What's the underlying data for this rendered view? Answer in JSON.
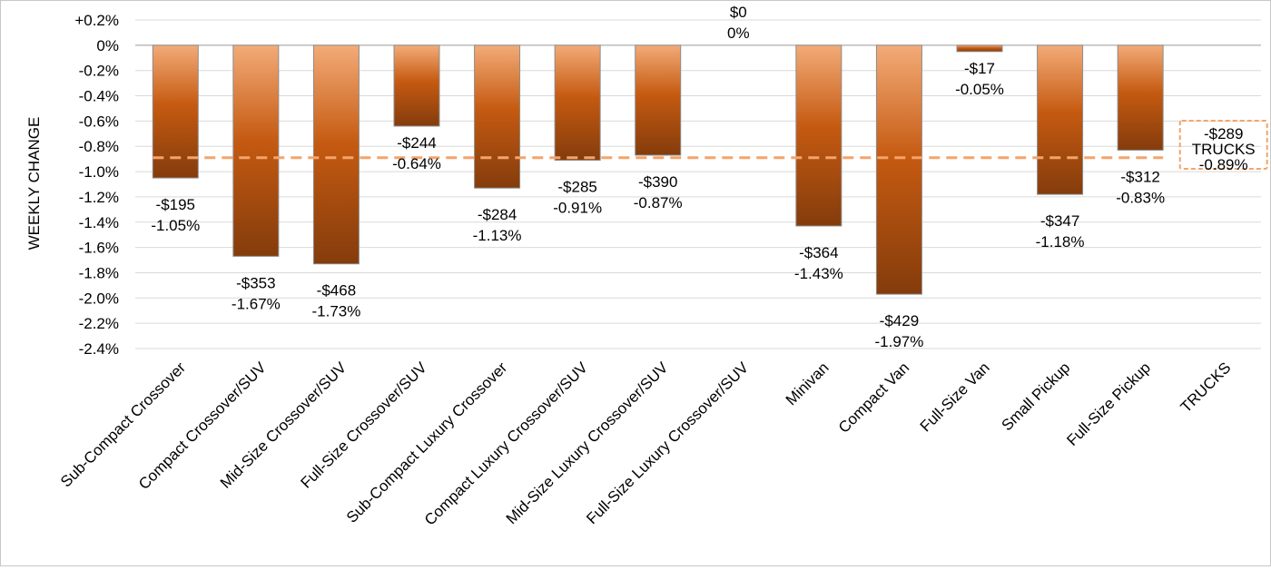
{
  "chart_data": {
    "type": "bar",
    "ylabel": "WEEKLY CHANGE",
    "ylim": [
      -2.4,
      0.2
    ],
    "yticks": [
      "+0.2%",
      "0%",
      "-0.2%",
      "-0.4%",
      "-0.6%",
      "-0.8%",
      "-1.0%",
      "-1.2%",
      "-1.4%",
      "-1.6%",
      "-1.8%",
      "-2.0%",
      "-2.2%",
      "-2.4%"
    ],
    "grid": true,
    "categories": [
      "Sub-Compact Crossover",
      "Compact Crossover/SUV",
      "Mid-Size Crossover/SUV",
      "Full-Size Crossover/SUV",
      "Sub-Compact Luxury Crossover",
      "Compact Luxury Crossover/SUV",
      "Mid-Size Luxury Crossover/SUV",
      "Full-Size Luxury Crossover/SUV",
      "Minivan",
      "Compact Van",
      "Full-Size Van",
      "Small Pickup",
      "Full-Size Pickup",
      "TRUCKS"
    ],
    "values": [
      -1.05,
      -1.67,
      -1.73,
      -0.64,
      -1.13,
      -0.91,
      -0.87,
      0,
      -1.43,
      -1.97,
      -0.05,
      -1.18,
      -0.83,
      null
    ],
    "dollar_labels": [
      "-$195",
      "-$353",
      "-$468",
      "-$244",
      "-$284",
      "-$285",
      "-$390",
      "$0",
      "-$364",
      "-$429",
      "-$17",
      "-$347",
      "-$312",
      ""
    ],
    "percent_labels": [
      "-1.05%",
      "-1.67%",
      "-1.73%",
      "-0.64%",
      "-1.13%",
      "-0.91%",
      "-0.87%",
      "0%",
      "-1.43%",
      "-1.97%",
      "-0.05%",
      "-1.18%",
      "-0.83%",
      ""
    ],
    "average_line": {
      "value": -0.89,
      "dollar": "-$289",
      "name": "TRUCKS",
      "percent": "-0.89%"
    },
    "colors": {
      "bar_top": "#f3ab78",
      "bar_mid": "#c55a11",
      "bar_bottom": "#843c0c",
      "bar_edge": "#8c8c8c",
      "average": "#f4a46b",
      "grid": "#d9d9d9"
    }
  }
}
